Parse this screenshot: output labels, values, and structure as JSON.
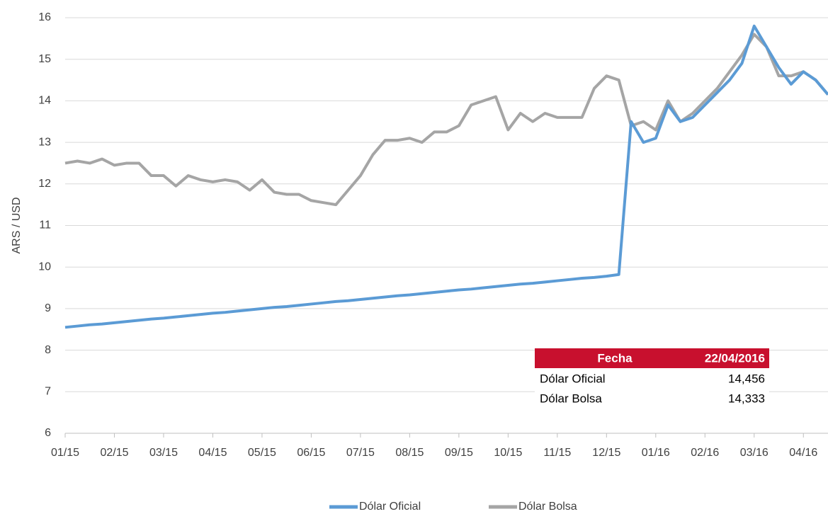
{
  "chart_data": {
    "type": "line",
    "y_label": "ARS / USD",
    "categories": [
      "01/15",
      null,
      null,
      null,
      "02/15",
      null,
      null,
      null,
      "03/15",
      null,
      null,
      null,
      "04/15",
      null,
      null,
      null,
      "05/15",
      null,
      null,
      null,
      "06/15",
      null,
      null,
      null,
      "07/15",
      null,
      null,
      null,
      "08/15",
      null,
      null,
      null,
      "09/15",
      null,
      null,
      null,
      "10/15",
      null,
      null,
      null,
      "11/15",
      null,
      null,
      null,
      "12/15",
      null,
      null,
      null,
      "01/16",
      null,
      null,
      null,
      "02/16",
      null,
      null,
      null,
      "03/16",
      null,
      null,
      null,
      "04/16",
      null,
      null
    ],
    "series": [
      {
        "name": "Dólar Oficial",
        "color": "#5b9bd5",
        "values": [
          8.55,
          8.58,
          8.61,
          8.63,
          8.66,
          8.69,
          8.72,
          8.75,
          8.77,
          8.8,
          8.83,
          8.86,
          8.89,
          8.91,
          8.94,
          8.97,
          9.0,
          9.03,
          9.05,
          9.08,
          9.11,
          9.14,
          9.17,
          9.19,
          9.22,
          9.25,
          9.28,
          9.31,
          9.33,
          9.36,
          9.39,
          9.42,
          9.45,
          9.47,
          9.5,
          9.53,
          9.56,
          9.59,
          9.61,
          9.64,
          9.67,
          9.7,
          9.73,
          9.75,
          9.78,
          9.82,
          13.5,
          13.0,
          13.1,
          13.9,
          13.5,
          13.6,
          13.9,
          14.2,
          14.5,
          14.9,
          15.8,
          15.3,
          14.8,
          14.4,
          14.7,
          14.5,
          14.15
        ]
      },
      {
        "name": "Dólar Bolsa",
        "color": "#a5a5a5",
        "values": [
          12.5,
          12.55,
          12.5,
          12.6,
          12.45,
          12.5,
          12.5,
          12.2,
          12.2,
          11.95,
          12.2,
          12.1,
          12.05,
          12.1,
          12.05,
          11.85,
          12.1,
          11.8,
          11.75,
          11.75,
          11.6,
          11.55,
          11.5,
          11.85,
          12.2,
          12.7,
          13.05,
          13.05,
          13.1,
          13.0,
          13.25,
          13.25,
          13.4,
          13.9,
          14.0,
          14.1,
          13.3,
          13.7,
          13.5,
          13.7,
          13.6,
          13.6,
          13.6,
          14.3,
          14.6,
          14.5,
          13.4,
          13.5,
          13.3,
          14.0,
          13.5,
          13.7,
          14.0,
          14.3,
          14.7,
          15.1,
          15.6,
          15.3,
          14.6,
          14.6,
          14.7,
          14.5,
          14.15
        ]
      }
    ],
    "ylim": [
      6,
      16
    ],
    "yticks": [
      6,
      7,
      8,
      9,
      10,
      11,
      12,
      13,
      14,
      15,
      16
    ],
    "grid": true,
    "legend": "bottom",
    "table": {
      "header": [
        "Fecha",
        "22/04/2016"
      ],
      "header_color": "#c8102e",
      "rows": [
        [
          "Dólar Oficial",
          "14,456"
        ],
        [
          "Dólar Bolsa",
          "14,333"
        ]
      ]
    }
  }
}
